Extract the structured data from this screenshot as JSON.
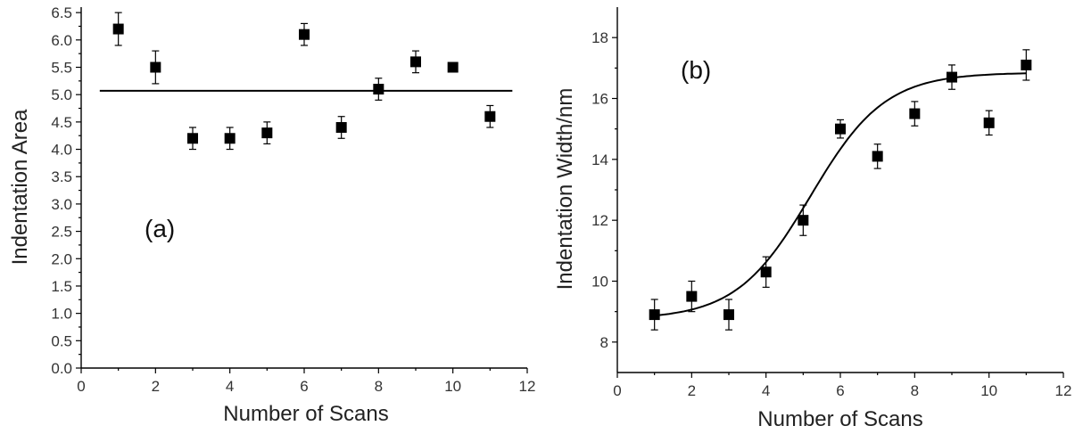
{
  "chart_data": [
    {
      "type": "scatter",
      "panel_label": "(a)",
      "xlabel": "Number of Scans",
      "ylabel": "Indentation Area",
      "xlim": [
        0,
        12
      ],
      "ylim": [
        0,
        6.6
      ],
      "xticks": [
        0,
        2,
        4,
        6,
        8,
        10,
        12
      ],
      "xtick_labels": [
        "0",
        "2",
        "4",
        "6",
        "8",
        "10",
        "12"
      ],
      "yticks": [
        0.0,
        0.5,
        1.0,
        1.5,
        2.0,
        2.5,
        3.0,
        3.5,
        4.0,
        4.5,
        5.0,
        5.5,
        6.0,
        6.5
      ],
      "ytick_labels": [
        "0.0",
        "0.5",
        "1.0",
        "1.5",
        "2.0",
        "2.5",
        "3.0",
        "3.5",
        "4.0",
        "4.5",
        "5.0",
        "5.5",
        "6.0",
        "6.5"
      ],
      "x": [
        1,
        2,
        3,
        4,
        5,
        6,
        7,
        8,
        9,
        10,
        11
      ],
      "y": [
        6.2,
        5.5,
        4.2,
        4.2,
        4.3,
        6.1,
        4.4,
        5.1,
        5.6,
        5.5,
        4.6
      ],
      "error": [
        0.3,
        0.3,
        0.2,
        0.2,
        0.2,
        0.2,
        0.2,
        0.2,
        0.2,
        0.05,
        0.2
      ],
      "reference_line": {
        "y": 5.07,
        "x_from": 0.5,
        "x_to": 11.6
      },
      "grid": false,
      "legend": "none"
    },
    {
      "type": "scatter",
      "panel_label": "(b)",
      "xlabel": "Number of Scans",
      "ylabel": "Indentation Width/nm",
      "xlim": [
        0,
        12
      ],
      "ylim": [
        7,
        19
      ],
      "xticks": [
        0,
        2,
        4,
        6,
        8,
        10,
        12
      ],
      "xtick_labels": [
        "0",
        "2",
        "4",
        "6",
        "8",
        "10",
        "12"
      ],
      "yticks": [
        8,
        10,
        12,
        14,
        16,
        18
      ],
      "ytick_labels": [
        "8",
        "10",
        "12",
        "14",
        "16",
        "18"
      ],
      "x": [
        1,
        2,
        3,
        4,
        5,
        6,
        7,
        8,
        9,
        10,
        11
      ],
      "y": [
        8.9,
        9.5,
        8.9,
        10.3,
        12.0,
        15.0,
        14.1,
        15.5,
        16.7,
        15.2,
        17.1
      ],
      "error": [
        0.5,
        0.5,
        0.5,
        0.5,
        0.5,
        0.3,
        0.4,
        0.4,
        0.4,
        0.4,
        0.5
      ],
      "fit_curve": {
        "model": "sigmoid",
        "x_from": 1,
        "x_to": 11,
        "base": 8.75,
        "top": 16.85,
        "center": 5.2,
        "width": 1.0
      },
      "grid": false,
      "legend": "none"
    }
  ]
}
